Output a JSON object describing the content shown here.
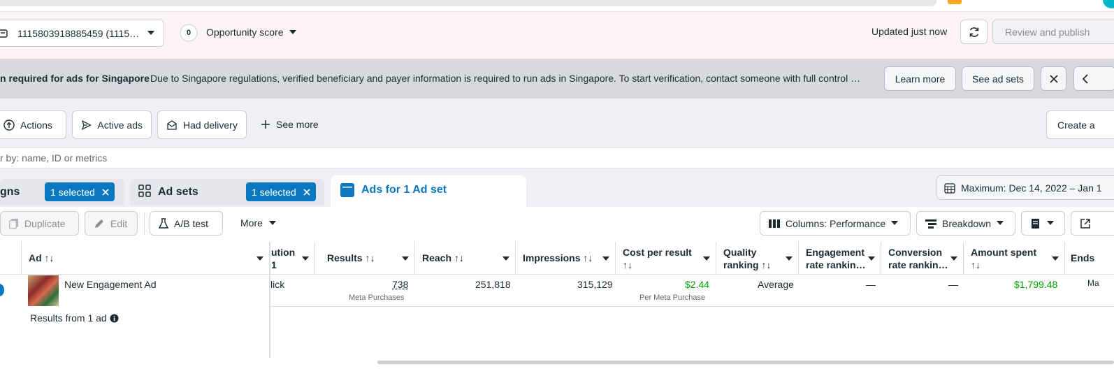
{
  "header": {
    "account_label": "1115803918885459 (1115…",
    "score_value": "0",
    "score_label": "Opportunity score",
    "updated": "Updated just now",
    "review_label": "Review and publish"
  },
  "banner": {
    "title": "n required for ads for Singapore",
    "text": "Due to Singapore regulations, verified beneficiary and payer information is required to run ads in Singapore. To start verification, contact someone with full control …",
    "learn_more": "Learn more",
    "see_ad_sets": "See ad sets"
  },
  "filters": {
    "actions": "Actions",
    "active_ads": "Active ads",
    "had_delivery": "Had delivery",
    "see_more": "See more",
    "create": "Create a"
  },
  "search": {
    "placeholder": "r by: name, ID or metrics"
  },
  "tabs": {
    "campaigns": "gns",
    "campaigns_selected": "1 selected",
    "adsets": "Ad sets",
    "adsets_selected": "1 selected",
    "ads": "Ads for 1 Ad set",
    "date_range": "Maximum: Dec 14, 2022 – Jan 1"
  },
  "toolbar": {
    "duplicate": "Duplicate",
    "edit": "Edit",
    "ab_test": "A/B test",
    "more": "More",
    "columns": "Columns: Performance",
    "breakdown": "Breakdown"
  },
  "table": {
    "headers": {
      "ad": "Ad ↑↓",
      "attribution_1": "ution",
      "attribution_2": "1",
      "results": "Results ↑↓",
      "reach": "Reach ↑↓",
      "impressions": "Impressions ↑↓",
      "cost_1": "Cost per result",
      "cost_2": "↑↓",
      "quality_1": "Quality",
      "quality_2": "ranking ↑↓",
      "engagement_1": "Engagement",
      "engagement_2": "rate rankin…",
      "conversion_1": "Conversion",
      "conversion_2": "rate rankin…",
      "amount_1": "Amount spent",
      "amount_2": "↑↓",
      "ends": "Ends"
    },
    "row": {
      "ad_name": "New Engagement Ad",
      "attribution": "lick",
      "results": "738",
      "results_sub": "Meta Purchases",
      "reach": "251,818",
      "impressions": "315,129",
      "cost": "$2.44",
      "cost_sub": "Per Meta Purchase",
      "quality": "Average",
      "engagement": "—",
      "conversion": "—",
      "amount": "$1,799.48",
      "ends": "Ma"
    },
    "summary": "Results from 1 ad"
  },
  "colors": {
    "accent": "#0a78be",
    "green": "#00a400"
  }
}
